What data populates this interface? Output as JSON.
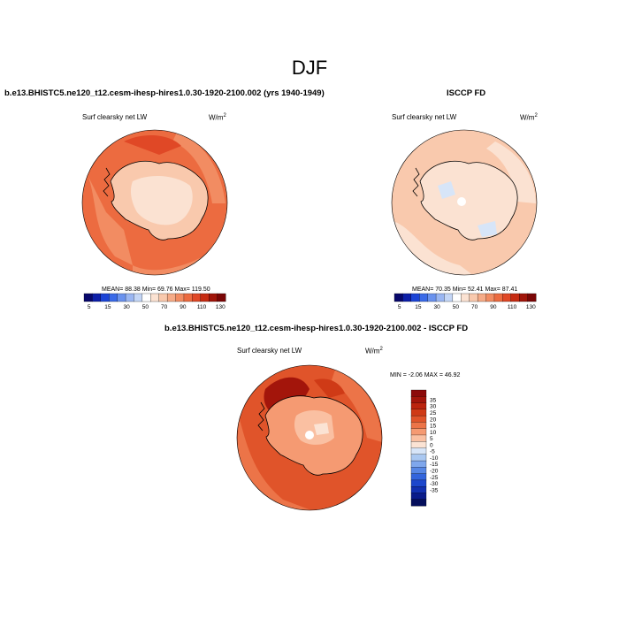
{
  "figure": {
    "title": "DJF"
  },
  "chart_data": [
    {
      "type": "heatmap",
      "panel": "model",
      "title": "b.e13.BHISTC5.ne120_t12.cesm-ihesp-hires1.0.30-1920-2100.002 (yrs 1940-1949)",
      "variable": "Surf clearsky net LW",
      "units": "W/m",
      "units_exp": "2",
      "stats": {
        "mean": 88.38,
        "min": 69.76,
        "max": 119.5
      },
      "stats_text": "MEAN= 88.38  Min= 69.76  Max= 119.50",
      "colorbar": {
        "levels": [
          "5",
          "15",
          "30",
          "50",
          "70",
          "90",
          "110",
          "130"
        ],
        "colors": [
          "#08086b",
          "#0d1fa8",
          "#1c44d6",
          "#3a6ae8",
          "#6a92ee",
          "#9ab6f2",
          "#c4d6f6",
          "#ffffff",
          "#fbe2d2",
          "#f9c9ad",
          "#f6ab87",
          "#f28c62",
          "#ec6b40",
          "#e04826",
          "#c62b12",
          "#a1150a",
          "#7a0606"
        ]
      }
    },
    {
      "type": "heatmap",
      "panel": "obs",
      "title": "ISCCP FD",
      "variable": "Surf clearsky net LW",
      "units": "W/m",
      "units_exp": "2",
      "stats": {
        "mean": 70.35,
        "min": 52.41,
        "max": 87.41
      },
      "stats_text": "MEAN= 70.35  Min= 52.41  Max= 87.41",
      "colorbar": {
        "levels": [
          "5",
          "15",
          "30",
          "50",
          "70",
          "90",
          "110",
          "130"
        ],
        "colors": [
          "#08086b",
          "#0d1fa8",
          "#1c44d6",
          "#3a6ae8",
          "#6a92ee",
          "#9ab6f2",
          "#c4d6f6",
          "#ffffff",
          "#fbe2d2",
          "#f9c9ad",
          "#f6ab87",
          "#f28c62",
          "#ec6b40",
          "#e04826",
          "#c62b12",
          "#a1150a",
          "#7a0606"
        ]
      }
    },
    {
      "type": "heatmap",
      "panel": "difference",
      "title": "b.e13.BHISTC5.ne120_t12.cesm-ihesp-hires1.0.30-1920-2100.002 - ISCCP FD",
      "variable": "Surf clearsky net LW",
      "units": "W/m",
      "units_exp": "2",
      "stats": {
        "min": -2.06,
        "max": 46.92
      },
      "stats_text": "MIN =  -2.06 MAX =  46.92",
      "colorbar": {
        "levels": [
          "35",
          "30",
          "25",
          "20",
          "15",
          "10",
          "5",
          "0",
          "-5",
          "-10",
          "-15",
          "-20",
          "-25",
          "-30",
          "-35"
        ],
        "colors": [
          "#8c0a0a",
          "#a3150b",
          "#bb240e",
          "#cf3a16",
          "#e0542a",
          "#ec7448",
          "#f59a72",
          "#fac0a2",
          "#fbe3d4",
          "#d7e5f8",
          "#aac8f1",
          "#7fa7ec",
          "#5787e5",
          "#3365dc",
          "#1d47cc",
          "#1230b0",
          "#0a1b8a",
          "#050f5c"
        ]
      }
    }
  ]
}
